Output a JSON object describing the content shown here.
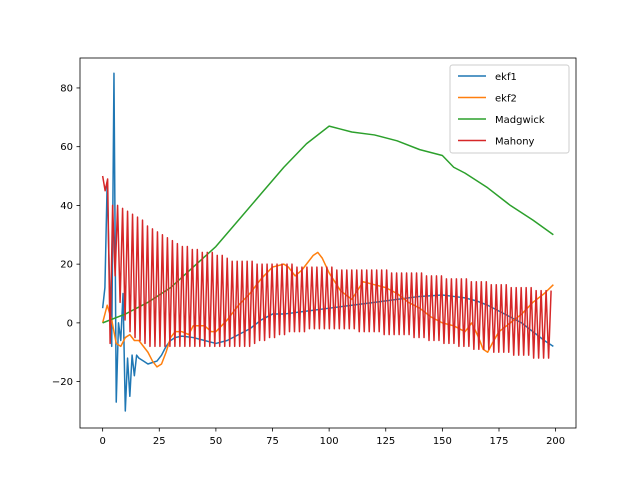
{
  "chart_data": {
    "type": "line",
    "title": "",
    "xlabel": "",
    "ylabel": "",
    "xlim": [
      -10,
      209
    ],
    "ylim": [
      -35.8,
      90.2
    ],
    "xticks": [
      0,
      25,
      50,
      75,
      100,
      125,
      150,
      175,
      200
    ],
    "yticks": [
      -20,
      0,
      20,
      40,
      60,
      80
    ],
    "grid": false,
    "legend_position": "upper-right",
    "series": [
      {
        "name": "ekf1",
        "color": "#1f77b4",
        "x": [
          0,
          1,
          2,
          3,
          4,
          5,
          6,
          7,
          8,
          9,
          10,
          11,
          12,
          13,
          14,
          15,
          16,
          18,
          20,
          22,
          24,
          26,
          28,
          30,
          32,
          35,
          40,
          45,
          50,
          55,
          60,
          65,
          70,
          75,
          80,
          90,
          100,
          110,
          120,
          130,
          140,
          150,
          155,
          160,
          165,
          170,
          175,
          180,
          185,
          190,
          195,
          199
        ],
        "y": [
          5,
          12,
          48,
          15,
          -8,
          85,
          -27,
          0,
          -6,
          10,
          -30,
          -12,
          -25,
          -11,
          -18,
          -11,
          -12,
          -13,
          -14,
          -13.5,
          -13,
          -11,
          -8,
          -6,
          -5,
          -4.5,
          -5,
          -6,
          -7,
          -6,
          -4,
          -2,
          1,
          3,
          3,
          4,
          5,
          6,
          7,
          8,
          9,
          9.5,
          9,
          8.5,
          7.5,
          6,
          4,
          2,
          0,
          -3,
          -6,
          -8
        ]
      },
      {
        "name": "ekf2",
        "color": "#ff7f0e",
        "x": [
          0,
          2,
          4,
          6,
          8,
          10,
          12,
          14,
          16,
          18,
          20,
          22,
          24,
          26,
          28,
          30,
          32,
          35,
          38,
          40,
          45,
          48,
          50,
          55,
          60,
          65,
          70,
          75,
          80,
          82,
          85,
          88,
          90,
          93,
          95,
          97,
          100,
          105,
          110,
          115,
          120,
          125,
          130,
          135,
          140,
          145,
          150,
          155,
          160,
          163,
          166,
          168,
          170,
          172,
          175,
          180,
          185,
          190,
          195,
          199
        ],
        "y": [
          0,
          6,
          1,
          -7,
          -8,
          -5,
          -4,
          -6,
          -6,
          -8,
          -10,
          -13,
          -15,
          -14,
          -10,
          -5,
          -3,
          -3,
          -4,
          -1,
          -1,
          -3,
          -3,
          1,
          6,
          10,
          15,
          19,
          20,
          19,
          16,
          18,
          20,
          23,
          24,
          22,
          17,
          11,
          8,
          14,
          13,
          12,
          10,
          7,
          5,
          2,
          0,
          -1,
          -3,
          0,
          -5,
          -9,
          -10,
          -7,
          -3,
          0,
          3,
          7,
          10,
          13
        ]
      },
      {
        "name": "Madgwick",
        "color": "#2ca02c",
        "x": [
          0,
          10,
          20,
          30,
          40,
          50,
          60,
          70,
          80,
          90,
          100,
          105,
          110,
          120,
          130,
          140,
          150,
          155,
          160,
          170,
          180,
          190,
          199
        ],
        "y": [
          0,
          3,
          7,
          12,
          19,
          26,
          35,
          44,
          53,
          61,
          67,
          66,
          65,
          64,
          62,
          59,
          57,
          53,
          51,
          46,
          40,
          35,
          30
        ]
      },
      {
        "name": "Mahony",
        "color": "#d62728",
        "high": [
          50,
          49,
          40,
          40,
          39,
          38,
          37,
          36,
          35,
          33,
          32,
          31,
          30,
          29,
          28,
          27,
          26,
          26,
          25,
          25,
          24,
          24,
          24,
          23,
          23,
          22,
          21,
          21,
          21,
          21,
          21,
          20,
          20,
          20,
          20,
          20,
          20,
          20,
          20,
          19,
          19,
          19,
          19,
          19,
          19,
          19,
          19,
          18,
          18,
          18,
          18,
          18,
          18,
          18,
          18,
          18,
          18,
          18,
          17,
          17,
          17,
          17,
          17,
          17,
          17,
          16,
          16,
          16,
          16,
          15,
          15,
          15,
          15,
          15,
          14,
          14,
          14,
          14,
          13,
          13,
          13,
          13,
          12,
          12,
          12,
          12,
          12,
          11,
          11,
          11,
          11
        ],
        "low": [
          45,
          -7,
          16,
          7,
          1,
          -3,
          -5,
          -6,
          -7,
          -8,
          -8,
          -8,
          -8,
          -8,
          -8,
          -8,
          -8,
          -8,
          -8,
          -8,
          -8,
          -8,
          -8,
          -8,
          -8,
          -8,
          -8,
          -8,
          -8,
          -8,
          -7,
          -6,
          -6,
          -5,
          -5,
          -4,
          -4,
          -3,
          -3,
          -3,
          -3,
          -2,
          -2,
          -2,
          -2,
          -2,
          -2,
          -2,
          -2,
          -2,
          -2,
          -3,
          -3,
          -3,
          -3,
          -3,
          -4,
          -4,
          -4,
          -4,
          -4,
          -4,
          -5,
          -5,
          -5,
          -6,
          -6,
          -6,
          -7,
          -7,
          -7,
          -8,
          -8,
          -8,
          -9,
          -9,
          -9,
          -9,
          -10,
          -10,
          -10,
          -10,
          -11,
          -11,
          -11,
          -11,
          -12,
          -12,
          -12,
          -12,
          -13
        ]
      }
    ]
  }
}
